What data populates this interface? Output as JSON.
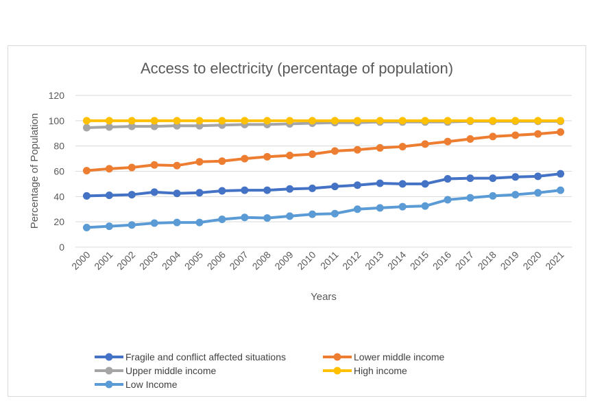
{
  "chart_data": {
    "type": "line",
    "title": "Access to electricity (percentage of population)",
    "xlabel": "Years",
    "ylabel": "Percentage of Population",
    "ylim": [
      0,
      120
    ],
    "yticks": [
      0,
      20,
      40,
      60,
      80,
      100,
      120
    ],
    "grid": true,
    "legend_position": "bottom",
    "categories": [
      "2000",
      "2001",
      "2002",
      "2003",
      "2004",
      "2005",
      "2006",
      "2007",
      "2008",
      "2009",
      "2010",
      "2011",
      "2012",
      "2013",
      "2014",
      "2015",
      "2016",
      "2017",
      "2018",
      "2019",
      "2020",
      "2021"
    ],
    "series": [
      {
        "name": "Fragile and conflict affected situations",
        "color": "#4472C4",
        "values": [
          40.5,
          41,
          41.5,
          43.5,
          42.5,
          43,
          44.5,
          45,
          45,
          46,
          46.5,
          48,
          49,
          50.5,
          50,
          50,
          54,
          54.5,
          54.5,
          55.5,
          56,
          58
        ]
      },
      {
        "name": "Lower middle income",
        "color": "#ED7D31",
        "values": [
          60.5,
          62,
          63,
          65,
          64.5,
          67.5,
          68,
          70,
          71.5,
          72.5,
          73.5,
          76,
          77,
          78.5,
          79.5,
          81.5,
          83.5,
          85.5,
          87.5,
          88.5,
          89.5,
          91
        ]
      },
      {
        "name": "Upper middle income",
        "color": "#A5A5A5",
        "values": [
          94.5,
          95,
          95.5,
          95.5,
          96,
          96,
          96.5,
          97,
          97,
          97.5,
          98,
          98.5,
          98.5,
          99,
          99,
          99,
          99,
          99.5,
          99.5,
          99.5,
          99.5,
          99.5
        ]
      },
      {
        "name": "High income",
        "color": "#FFC000",
        "values": [
          100,
          100,
          100,
          100,
          100,
          100,
          100,
          100,
          100,
          100,
          100,
          100,
          100,
          100,
          100,
          100,
          100,
          100,
          100,
          100,
          100,
          100
        ]
      },
      {
        "name": "Low Income",
        "color": "#5B9BD5",
        "values": [
          15.5,
          16.5,
          17.5,
          19,
          19.5,
          19.5,
          22,
          23.5,
          23,
          24.5,
          26,
          26.5,
          30,
          31,
          32,
          32.5,
          37.5,
          39,
          40.5,
          41.5,
          43,
          45
        ]
      }
    ]
  }
}
